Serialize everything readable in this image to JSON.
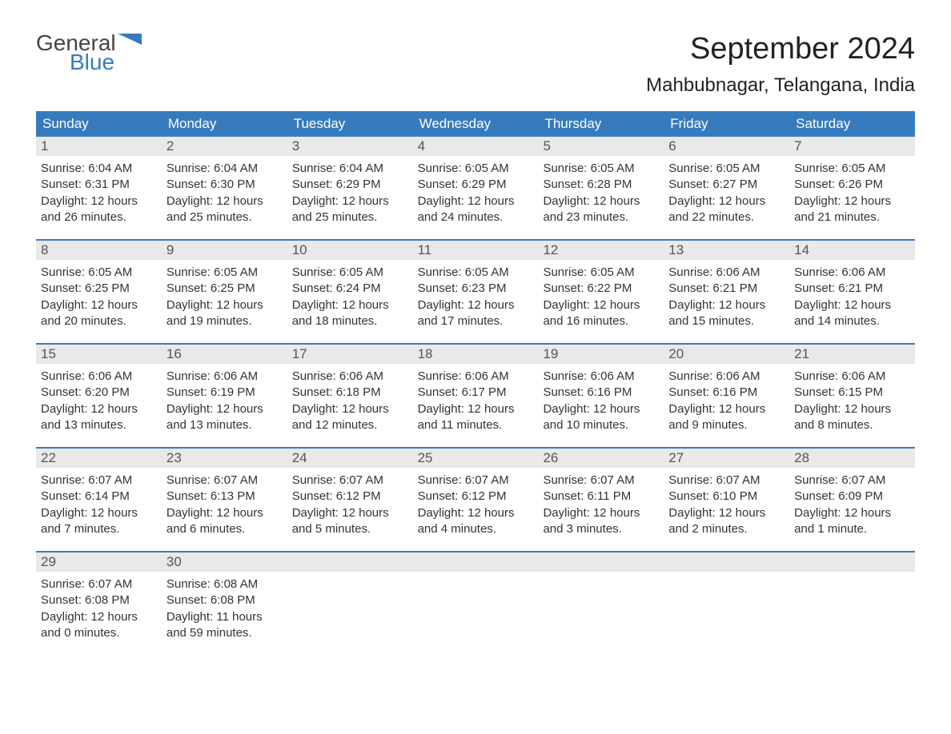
{
  "logo": {
    "text_general": "General",
    "text_blue": "Blue"
  },
  "title": "September 2024",
  "location": "Mahbubnagar, Telangana, India",
  "colors": {
    "header_bg": "#377bbf",
    "header_text": "#ffffff",
    "daynum_bg": "#e9e9e9",
    "week_border": "#377bbf",
    "body_text": "#333333",
    "background": "#ffffff"
  },
  "typography": {
    "title_fontsize": 38,
    "location_fontsize": 24,
    "dayheader_fontsize": 17,
    "daynum_fontsize": 17,
    "body_fontsize": 15
  },
  "day_headers": [
    "Sunday",
    "Monday",
    "Tuesday",
    "Wednesday",
    "Thursday",
    "Friday",
    "Saturday"
  ],
  "weeks": [
    [
      {
        "num": "1",
        "sunrise": "Sunrise: 6:04 AM",
        "sunset": "Sunset: 6:31 PM",
        "daylight": "Daylight: 12 hours and 26 minutes."
      },
      {
        "num": "2",
        "sunrise": "Sunrise: 6:04 AM",
        "sunset": "Sunset: 6:30 PM",
        "daylight": "Daylight: 12 hours and 25 minutes."
      },
      {
        "num": "3",
        "sunrise": "Sunrise: 6:04 AM",
        "sunset": "Sunset: 6:29 PM",
        "daylight": "Daylight: 12 hours and 25 minutes."
      },
      {
        "num": "4",
        "sunrise": "Sunrise: 6:05 AM",
        "sunset": "Sunset: 6:29 PM",
        "daylight": "Daylight: 12 hours and 24 minutes."
      },
      {
        "num": "5",
        "sunrise": "Sunrise: 6:05 AM",
        "sunset": "Sunset: 6:28 PM",
        "daylight": "Daylight: 12 hours and 23 minutes."
      },
      {
        "num": "6",
        "sunrise": "Sunrise: 6:05 AM",
        "sunset": "Sunset: 6:27 PM",
        "daylight": "Daylight: 12 hours and 22 minutes."
      },
      {
        "num": "7",
        "sunrise": "Sunrise: 6:05 AM",
        "sunset": "Sunset: 6:26 PM",
        "daylight": "Daylight: 12 hours and 21 minutes."
      }
    ],
    [
      {
        "num": "8",
        "sunrise": "Sunrise: 6:05 AM",
        "sunset": "Sunset: 6:25 PM",
        "daylight": "Daylight: 12 hours and 20 minutes."
      },
      {
        "num": "9",
        "sunrise": "Sunrise: 6:05 AM",
        "sunset": "Sunset: 6:25 PM",
        "daylight": "Daylight: 12 hours and 19 minutes."
      },
      {
        "num": "10",
        "sunrise": "Sunrise: 6:05 AM",
        "sunset": "Sunset: 6:24 PM",
        "daylight": "Daylight: 12 hours and 18 minutes."
      },
      {
        "num": "11",
        "sunrise": "Sunrise: 6:05 AM",
        "sunset": "Sunset: 6:23 PM",
        "daylight": "Daylight: 12 hours and 17 minutes."
      },
      {
        "num": "12",
        "sunrise": "Sunrise: 6:05 AM",
        "sunset": "Sunset: 6:22 PM",
        "daylight": "Daylight: 12 hours and 16 minutes."
      },
      {
        "num": "13",
        "sunrise": "Sunrise: 6:06 AM",
        "sunset": "Sunset: 6:21 PM",
        "daylight": "Daylight: 12 hours and 15 minutes."
      },
      {
        "num": "14",
        "sunrise": "Sunrise: 6:06 AM",
        "sunset": "Sunset: 6:21 PM",
        "daylight": "Daylight: 12 hours and 14 minutes."
      }
    ],
    [
      {
        "num": "15",
        "sunrise": "Sunrise: 6:06 AM",
        "sunset": "Sunset: 6:20 PM",
        "daylight": "Daylight: 12 hours and 13 minutes."
      },
      {
        "num": "16",
        "sunrise": "Sunrise: 6:06 AM",
        "sunset": "Sunset: 6:19 PM",
        "daylight": "Daylight: 12 hours and 13 minutes."
      },
      {
        "num": "17",
        "sunrise": "Sunrise: 6:06 AM",
        "sunset": "Sunset: 6:18 PM",
        "daylight": "Daylight: 12 hours and 12 minutes."
      },
      {
        "num": "18",
        "sunrise": "Sunrise: 6:06 AM",
        "sunset": "Sunset: 6:17 PM",
        "daylight": "Daylight: 12 hours and 11 minutes."
      },
      {
        "num": "19",
        "sunrise": "Sunrise: 6:06 AM",
        "sunset": "Sunset: 6:16 PM",
        "daylight": "Daylight: 12 hours and 10 minutes."
      },
      {
        "num": "20",
        "sunrise": "Sunrise: 6:06 AM",
        "sunset": "Sunset: 6:16 PM",
        "daylight": "Daylight: 12 hours and 9 minutes."
      },
      {
        "num": "21",
        "sunrise": "Sunrise: 6:06 AM",
        "sunset": "Sunset: 6:15 PM",
        "daylight": "Daylight: 12 hours and 8 minutes."
      }
    ],
    [
      {
        "num": "22",
        "sunrise": "Sunrise: 6:07 AM",
        "sunset": "Sunset: 6:14 PM",
        "daylight": "Daylight: 12 hours and 7 minutes."
      },
      {
        "num": "23",
        "sunrise": "Sunrise: 6:07 AM",
        "sunset": "Sunset: 6:13 PM",
        "daylight": "Daylight: 12 hours and 6 minutes."
      },
      {
        "num": "24",
        "sunrise": "Sunrise: 6:07 AM",
        "sunset": "Sunset: 6:12 PM",
        "daylight": "Daylight: 12 hours and 5 minutes."
      },
      {
        "num": "25",
        "sunrise": "Sunrise: 6:07 AM",
        "sunset": "Sunset: 6:12 PM",
        "daylight": "Daylight: 12 hours and 4 minutes."
      },
      {
        "num": "26",
        "sunrise": "Sunrise: 6:07 AM",
        "sunset": "Sunset: 6:11 PM",
        "daylight": "Daylight: 12 hours and 3 minutes."
      },
      {
        "num": "27",
        "sunrise": "Sunrise: 6:07 AM",
        "sunset": "Sunset: 6:10 PM",
        "daylight": "Daylight: 12 hours and 2 minutes."
      },
      {
        "num": "28",
        "sunrise": "Sunrise: 6:07 AM",
        "sunset": "Sunset: 6:09 PM",
        "daylight": "Daylight: 12 hours and 1 minute."
      }
    ],
    [
      {
        "num": "29",
        "sunrise": "Sunrise: 6:07 AM",
        "sunset": "Sunset: 6:08 PM",
        "daylight": "Daylight: 12 hours and 0 minutes."
      },
      {
        "num": "30",
        "sunrise": "Sunrise: 6:08 AM",
        "sunset": "Sunset: 6:08 PM",
        "daylight": "Daylight: 11 hours and 59 minutes."
      },
      null,
      null,
      null,
      null,
      null
    ]
  ]
}
